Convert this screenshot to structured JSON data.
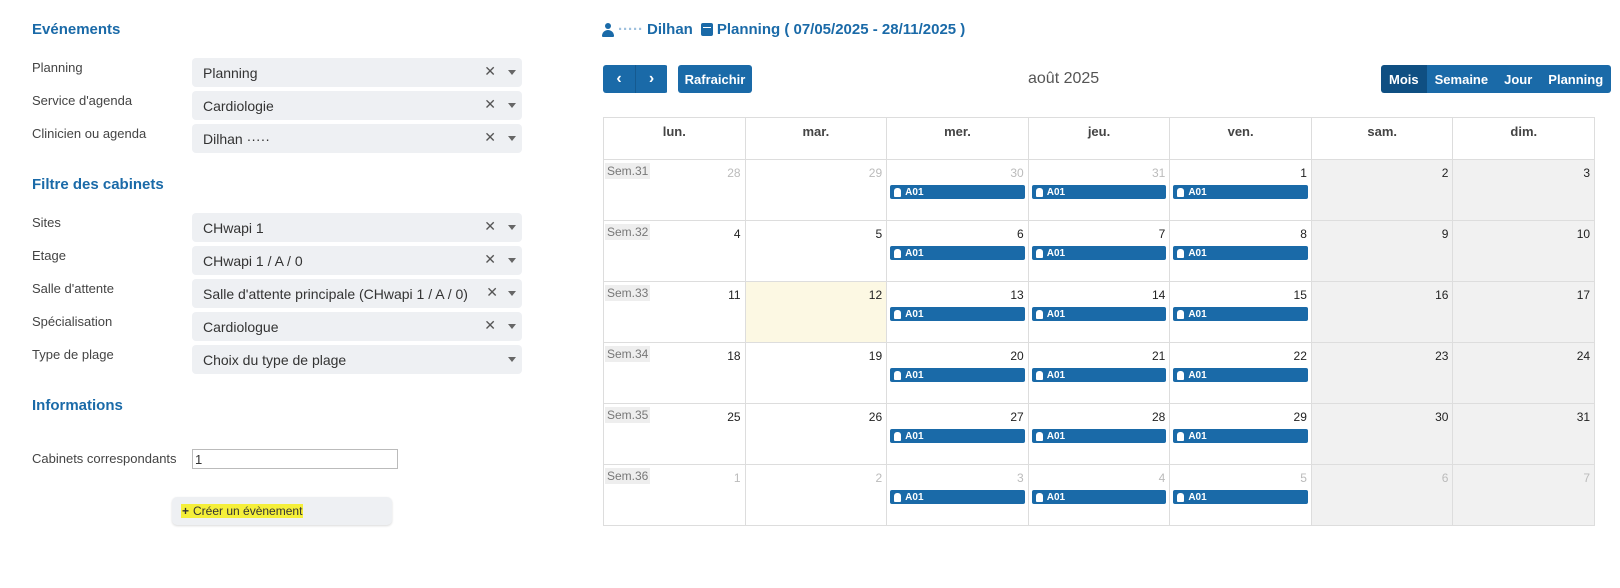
{
  "sections": {
    "events_title": "Evénements",
    "filters_title": "Filtre des cabinets",
    "info_title": "Informations"
  },
  "fields": {
    "planning": {
      "label": "Planning",
      "value": "Planning"
    },
    "service": {
      "label": "Service d'agenda",
      "value": "Cardiologie"
    },
    "clinician": {
      "label": "Clinicien ou agenda",
      "value": "Dilhan ·····"
    },
    "sites": {
      "label": "Sites",
      "value": "CHwapi 1"
    },
    "floor": {
      "label": "Etage",
      "value": "CHwapi 1 / A / 0"
    },
    "waiting_room": {
      "label": "Salle d'attente",
      "value": "Salle d'attente principale (CHwapi 1 / A / 0)"
    },
    "specialisation": {
      "label": "Spécialisation",
      "value": "Cardiologue"
    },
    "slot_type": {
      "label": "Type de plage",
      "value": "Choix du type de plage"
    },
    "matching_cabinets": {
      "label": "Cabinets correspondants",
      "value": "1"
    }
  },
  "clear_symbol": "✕",
  "create_button": {
    "plus": "+",
    "label": "Créer un évènement"
  },
  "header": {
    "user_blurred": "·····",
    "user_name": "Dilhan",
    "planning_text": "Planning ( 07/05/2025 - 28/11/2025 )"
  },
  "toolbar": {
    "prev": "‹",
    "next": "›",
    "refresh": "Rafraichir",
    "month": "août 2025",
    "views": [
      "Mois",
      "Semaine",
      "Jour",
      "Planning"
    ],
    "active_view": "Mois"
  },
  "calendar": {
    "weekdays": [
      "lun.",
      "mar.",
      "mer.",
      "jeu.",
      "ven.",
      "sam.",
      "dim."
    ],
    "event_label": "A01",
    "weeks": [
      {
        "label": "Sem.31",
        "days": [
          {
            "n": "28",
            "other": true
          },
          {
            "n": "29",
            "other": true
          },
          {
            "n": "30",
            "other": true,
            "event": true
          },
          {
            "n": "31",
            "other": true,
            "event": true
          },
          {
            "n": "1",
            "event": true
          },
          {
            "n": "2"
          },
          {
            "n": "3"
          }
        ]
      },
      {
        "label": "Sem.32",
        "days": [
          {
            "n": "4"
          },
          {
            "n": "5"
          },
          {
            "n": "6",
            "event": true
          },
          {
            "n": "7",
            "event": true
          },
          {
            "n": "8",
            "event": true
          },
          {
            "n": "9"
          },
          {
            "n": "10"
          }
        ]
      },
      {
        "label": "Sem.33",
        "days": [
          {
            "n": "11"
          },
          {
            "n": "12",
            "today": true
          },
          {
            "n": "13",
            "event": true
          },
          {
            "n": "14",
            "event": true
          },
          {
            "n": "15",
            "event": true
          },
          {
            "n": "16"
          },
          {
            "n": "17"
          }
        ]
      },
      {
        "label": "Sem.34",
        "days": [
          {
            "n": "18"
          },
          {
            "n": "19"
          },
          {
            "n": "20",
            "event": true
          },
          {
            "n": "21",
            "event": true
          },
          {
            "n": "22",
            "event": true
          },
          {
            "n": "23"
          },
          {
            "n": "24"
          }
        ]
      },
      {
        "label": "Sem.35",
        "days": [
          {
            "n": "25"
          },
          {
            "n": "26"
          },
          {
            "n": "27",
            "event": true
          },
          {
            "n": "28",
            "event": true
          },
          {
            "n": "29",
            "event": true
          },
          {
            "n": "30"
          },
          {
            "n": "31"
          }
        ]
      },
      {
        "label": "Sem.36",
        "days": [
          {
            "n": "1",
            "other": true
          },
          {
            "n": "2",
            "other": true
          },
          {
            "n": "3",
            "other": true,
            "event": true
          },
          {
            "n": "4",
            "other": true,
            "event": true
          },
          {
            "n": "5",
            "other": true,
            "event": true
          },
          {
            "n": "6",
            "other": true
          },
          {
            "n": "7",
            "other": true
          }
        ]
      }
    ]
  },
  "colors": {
    "accent": "#1a6aa8",
    "today": "#fcf8e3",
    "weekend": "#f1f1f1",
    "highlight": "#f5ef3a"
  }
}
